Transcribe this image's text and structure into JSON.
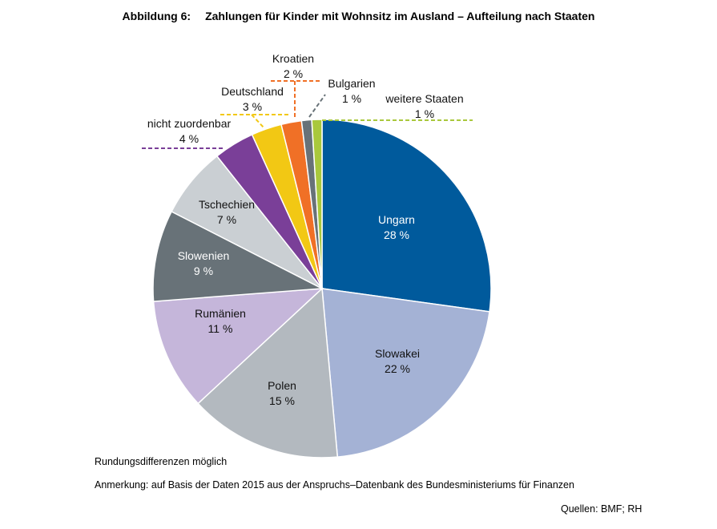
{
  "title_number": "Abbildung 6:",
  "title": "Zahlungen für Kinder mit Wohnsitz im Ausland – Aufteilung nach Staaten",
  "chart_data": {
    "type": "pie",
    "title": "Zahlungen für Kinder mit Wohnsitz im Ausland – Aufteilung nach Staaten",
    "start": "12 o'clock, clockwise",
    "slices": [
      {
        "label": "Ungarn",
        "value": 28,
        "text": "28 %",
        "color": "#005a9c"
      },
      {
        "label": "Slowakei",
        "value": 22,
        "text": "22 %",
        "color": "#a4b2d5"
      },
      {
        "label": "Polen",
        "value": 15,
        "text": "15 %",
        "color": "#b3b9bf"
      },
      {
        "label": "Rumänien",
        "value": 11,
        "text": "11 %",
        "color": "#c5b6da"
      },
      {
        "label": "Slowenien",
        "value": 9,
        "text": "9 %",
        "color": "#687278"
      },
      {
        "label": "Tschechien",
        "value": 7,
        "text": "7 %",
        "color": "#cacfd3"
      },
      {
        "label": "nicht zuordenbar",
        "value": 4,
        "text": "4 %",
        "color": "#7a3f98"
      },
      {
        "label": "Deutschland",
        "value": 3,
        "text": "3 %",
        "color": "#f2c814"
      },
      {
        "label": "Kroatien",
        "value": 2,
        "text": "2 %",
        "color": "#f07026"
      },
      {
        "label": "Bulgarien",
        "value": 1,
        "text": "1 %",
        "color": "#687278"
      },
      {
        "label": "weitere Staaten",
        "value": 1,
        "text": "1 %",
        "color": "#a9c83c"
      }
    ]
  },
  "notes": {
    "rounding": "Rundungsdifferenzen möglich",
    "remark": "Anmerkung: auf Basis der Daten 2015 aus der Anspruchs–Datenbank des Bundesministeriums für Finanzen",
    "sources": "Quellen: BMF; RH"
  }
}
